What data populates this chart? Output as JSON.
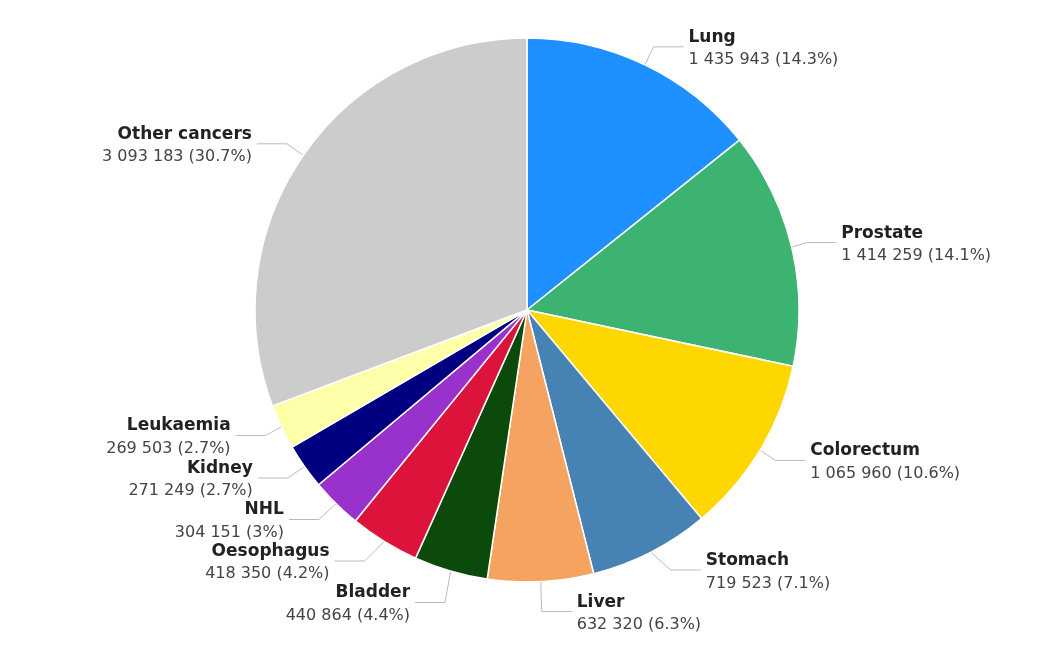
{
  "chart_data": {
    "type": "pie",
    "categories": [
      "Lung",
      "Prostate",
      "Colorectum",
      "Stomach",
      "Liver",
      "Bladder",
      "Oesophagus",
      "NHL",
      "Kidney",
      "Leukaemia",
      "Other cancers"
    ],
    "values": [
      1435943,
      1414259,
      1065960,
      719523,
      632320,
      440864,
      418350,
      304151,
      271249,
      269503,
      3093183
    ],
    "value_labels": [
      "1 435 943 (14.3%)",
      "1 414 259 (14.1%)",
      "1 065 960 (10.6%)",
      "719 523 (7.1%)",
      "632 320 (6.3%)",
      "440 864 (4.4%)",
      "418 350 (4.2%)",
      "304 151 (3%)",
      "271 249 (2.7%)",
      "269 503 (2.7%)",
      "3 093 183 (30.7%)"
    ],
    "colors": [
      "#1e90ff",
      "#3cb371",
      "#ffd700",
      "#4682b4",
      "#f4a460",
      "#0b4a0b",
      "#dc143c",
      "#9932cc",
      "#000080",
      "#ffffaa",
      "#cccccc"
    ],
    "legend": false
  }
}
